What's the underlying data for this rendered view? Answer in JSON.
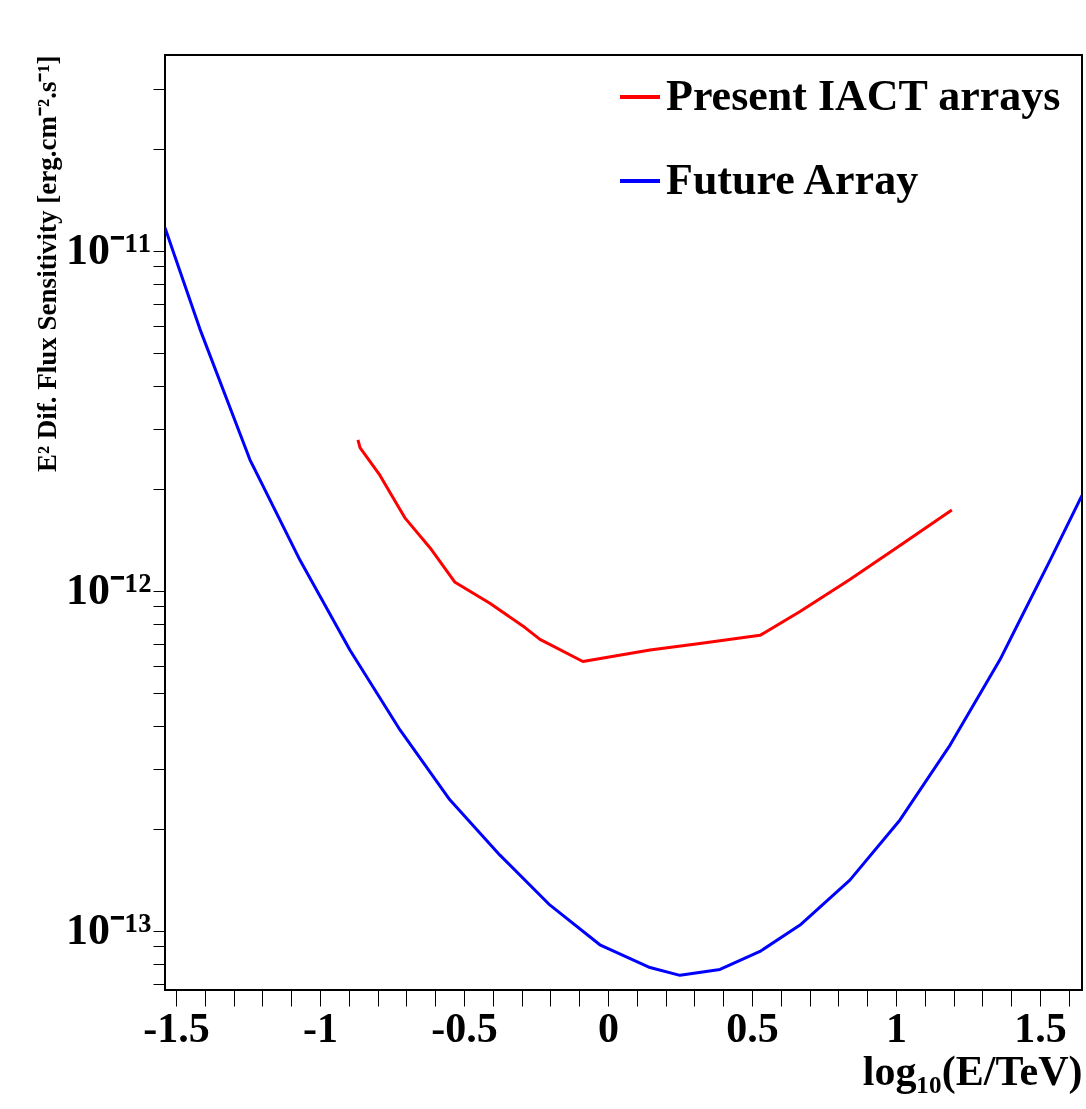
{
  "chart_data": {
    "type": "line",
    "xlabel": "log₁₀(E/TeV)",
    "ylabel": "E² Dif. Flux Sensitivity [erg.cm⁻².s⁻¹]",
    "log": "y",
    "xlim": [
      -1.538,
      1.646
    ],
    "ylim": [
      6.7e-14,
      3.77e-11
    ],
    "xticks": [
      -1.5,
      {
        "value": -1.4,
        "label": null
      },
      {
        "value": -1.3,
        "label": null
      },
      {
        "value": -1.2,
        "label": null
      },
      {
        "value": -1.1,
        "label": null
      },
      -1,
      {
        "value": -0.9,
        "label": null
      },
      {
        "value": -0.8,
        "label": null
      },
      {
        "value": -0.7,
        "label": null
      },
      {
        "value": -0.6,
        "label": null
      },
      -0.5,
      {
        "value": -0.4,
        "label": null
      },
      {
        "value": -0.3,
        "label": null
      },
      {
        "value": -0.2,
        "label": null
      },
      {
        "value": -0.1,
        "label": null
      },
      0,
      {
        "value": 0.1,
        "label": null
      },
      {
        "value": 0.2,
        "label": null
      },
      {
        "value": 0.3,
        "label": null
      },
      {
        "value": 0.4,
        "label": null
      },
      0.5,
      {
        "value": 0.6,
        "label": null
      },
      {
        "value": 0.7,
        "label": null
      },
      {
        "value": 0.8,
        "label": null
      },
      {
        "value": 0.9,
        "label": null
      },
      1,
      {
        "value": 1.1,
        "label": null
      },
      {
        "value": 1.2,
        "label": null
      },
      {
        "value": 1.3,
        "label": null
      },
      {
        "value": 1.4,
        "label": null
      },
      1.5,
      {
        "value": 1.6,
        "label": null
      }
    ],
    "yticks": [
      {
        "value": 7e-14,
        "label": null
      },
      {
        "value": 8e-14,
        "label": null
      },
      {
        "value": 9e-14,
        "label": null
      },
      {
        "value": 1e-13,
        "label": "10⁻¹³"
      },
      {
        "value": 2e-13,
        "label": null
      },
      {
        "value": 3e-13,
        "label": null
      },
      {
        "value": 4e-13,
        "label": null
      },
      {
        "value": 5e-13,
        "label": null
      },
      {
        "value": 6e-13,
        "label": null
      },
      {
        "value": 7e-13,
        "label": null
      },
      {
        "value": 8e-13,
        "label": null
      },
      {
        "value": 9e-13,
        "label": null
      },
      {
        "value": 1e-12,
        "label": "10⁻¹²"
      },
      {
        "value": 2e-12,
        "label": null
      },
      {
        "value": 3e-12,
        "label": null
      },
      {
        "value": 4e-12,
        "label": null
      },
      {
        "value": 5e-12,
        "label": null
      },
      {
        "value": 6e-12,
        "label": null
      },
      {
        "value": 7e-12,
        "label": null
      },
      {
        "value": 8e-12,
        "label": null
      },
      {
        "value": 9e-12,
        "label": null
      },
      {
        "value": 1e-11,
        "label": "10⁻¹¹"
      },
      {
        "value": 2e-11,
        "label": null
      },
      {
        "value": 3e-11,
        "label": null
      }
    ],
    "grid": false,
    "legend": "top right",
    "line_style": "solid",
    "marker": "none",
    "series": [
      {
        "name": "Present IACT arrays",
        "color": "#ff0000",
        "x": [
          -0.868,
          -0.861,
          -0.792,
          -0.705,
          -0.618,
          -0.531,
          -0.41,
          -0.288,
          -0.236,
          -0.087,
          0.146,
          0.319,
          0.528,
          0.667,
          0.84,
          1.014,
          1.194
        ],
        "values": [
          2.78e-12,
          2.64e-12,
          2.19e-12,
          1.64e-12,
          1.34e-12,
          1.06e-12,
          9.2e-13,
          7.8e-13,
          7.2e-13,
          6.2e-13,
          6.7e-13,
          7e-13,
          7.4e-13,
          8.7e-13,
          1.08e-12,
          1.36e-12,
          1.73e-12
        ]
      },
      {
        "name": "Future Array",
        "color": "#0000ff",
        "x": [
          -1.538,
          -1.417,
          -1.243,
          -1.069,
          -0.896,
          -0.722,
          -0.549,
          -0.375,
          -0.201,
          -0.028,
          0.146,
          0.25,
          0.389,
          0.528,
          0.667,
          0.84,
          1.014,
          1.188,
          1.361,
          1.535,
          1.646
        ],
        "values": [
          1.17e-11,
          5.9e-12,
          2.43e-12,
          1.23e-12,
          6.7e-13,
          3.9e-13,
          2.43e-13,
          1.67e-13,
          1.19e-13,
          9.1e-14,
          7.8e-14,
          7.4e-14,
          7.7e-14,
          8.7e-14,
          1.04e-13,
          1.41e-13,
          2.12e-13,
          3.52e-13,
          6.27e-13,
          1.23e-12,
          1.91e-12
        ]
      }
    ]
  }
}
